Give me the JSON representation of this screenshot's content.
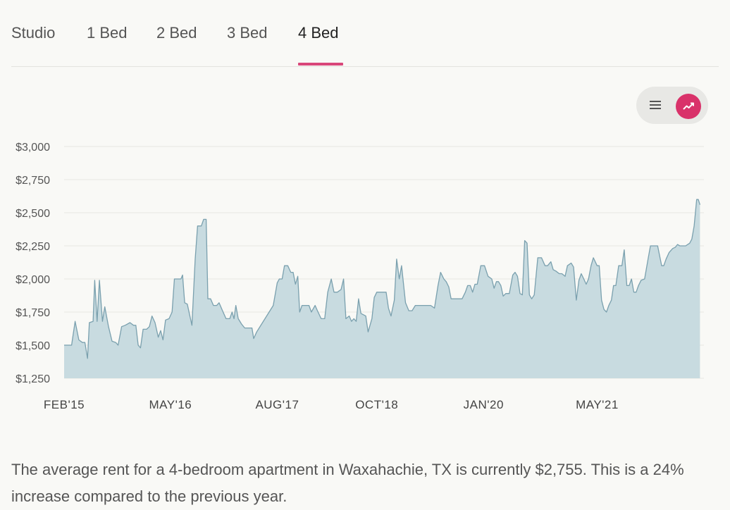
{
  "tabs": [
    {
      "label": "Studio"
    },
    {
      "label": "1 Bed"
    },
    {
      "label": "2 Bed"
    },
    {
      "label": "3 Bed"
    },
    {
      "label": "4 Bed"
    }
  ],
  "active_tab": "4 Bed",
  "view_toggle": {
    "options": [
      "list",
      "chart"
    ],
    "selected": "chart"
  },
  "colors": {
    "accent": "#d9326a",
    "area_fill": "#c8dbe0",
    "line": "#7aa0ae",
    "grid": "#e6e6e2"
  },
  "chart_data": {
    "type": "area",
    "title": "",
    "xlabel": "",
    "ylabel": "",
    "ylim": [
      1250,
      3000
    ],
    "yticks": [
      {
        "value": 1250,
        "label": "$1,250"
      },
      {
        "value": 1500,
        "label": "$1,500"
      },
      {
        "value": 1750,
        "label": "$1,750"
      },
      {
        "value": 2000,
        "label": "$2,000"
      },
      {
        "value": 2250,
        "label": "$2,250"
      },
      {
        "value": 2500,
        "label": "$2,500"
      },
      {
        "value": 2750,
        "label": "$2,750"
      },
      {
        "value": 3000,
        "label": "$3,000"
      }
    ],
    "xlim": [
      "2015-02",
      "2022-08"
    ],
    "xticks": [
      {
        "date": "2015-02",
        "label": "FEB'15"
      },
      {
        "date": "2016-05",
        "label": "MAY'16"
      },
      {
        "date": "2017-08",
        "label": "AUG'17"
      },
      {
        "date": "2018-10",
        "label": "OCT'18"
      },
      {
        "date": "2020-01",
        "label": "JAN'20"
      },
      {
        "date": "2021-05",
        "label": "MAY'21"
      }
    ],
    "grid": true,
    "series": [
      {
        "points": [
          [
            "2015-02-01",
            1500
          ],
          [
            "2015-03-05",
            1500
          ],
          [
            "2015-03-20",
            1680
          ],
          [
            "2015-04-05",
            1540
          ],
          [
            "2015-04-20",
            1520
          ],
          [
            "2015-05-01",
            1520
          ],
          [
            "2015-05-12",
            1400
          ],
          [
            "2015-05-20",
            1670
          ],
          [
            "2015-06-05",
            1680
          ],
          [
            "2015-06-12",
            1990
          ],
          [
            "2015-06-22",
            1680
          ],
          [
            "2015-07-02",
            1990
          ],
          [
            "2015-07-15",
            1680
          ],
          [
            "2015-07-25",
            1790
          ],
          [
            "2015-08-10",
            1640
          ],
          [
            "2015-08-25",
            1530
          ],
          [
            "2015-09-10",
            1520
          ],
          [
            "2015-09-20",
            1500
          ],
          [
            "2015-10-05",
            1640
          ],
          [
            "2015-10-20",
            1650
          ],
          [
            "2015-11-10",
            1670
          ],
          [
            "2015-11-25",
            1650
          ],
          [
            "2015-12-05",
            1650
          ],
          [
            "2015-12-15",
            1500
          ],
          [
            "2015-12-25",
            1480
          ],
          [
            "2016-01-05",
            1620
          ],
          [
            "2016-01-20",
            1620
          ],
          [
            "2016-02-01",
            1640
          ],
          [
            "2016-02-12",
            1720
          ],
          [
            "2016-02-25",
            1670
          ],
          [
            "2016-03-10",
            1560
          ],
          [
            "2016-03-20",
            1610
          ],
          [
            "2016-03-30",
            1540
          ],
          [
            "2016-04-10",
            1690
          ],
          [
            "2016-04-25",
            1700
          ],
          [
            "2016-05-08",
            1750
          ],
          [
            "2016-05-18",
            2000
          ],
          [
            "2016-06-01",
            2000
          ],
          [
            "2016-06-15",
            2000
          ],
          [
            "2016-06-22",
            2030
          ],
          [
            "2016-07-01",
            1820
          ],
          [
            "2016-07-12",
            1810
          ],
          [
            "2016-07-22",
            1730
          ],
          [
            "2016-08-01",
            1650
          ],
          [
            "2016-08-15",
            2150
          ],
          [
            "2016-08-25",
            2400
          ],
          [
            "2016-09-10",
            2400
          ],
          [
            "2016-09-20",
            2450
          ],
          [
            "2016-10-01",
            2450
          ],
          [
            "2016-10-08",
            1850
          ],
          [
            "2016-10-20",
            1850
          ],
          [
            "2016-11-01",
            1800
          ],
          [
            "2016-11-15",
            1800
          ],
          [
            "2016-11-25",
            1820
          ],
          [
            "2016-12-10",
            1760
          ],
          [
            "2016-12-25",
            1700
          ],
          [
            "2017-01-10",
            1700
          ],
          [
            "2017-01-20",
            1750
          ],
          [
            "2017-01-28",
            1700
          ],
          [
            "2017-02-05",
            1800
          ],
          [
            "2017-02-15",
            1700
          ],
          [
            "2017-03-01",
            1660
          ],
          [
            "2017-03-15",
            1630
          ],
          [
            "2017-04-01",
            1630
          ],
          [
            "2017-04-15",
            1630
          ],
          [
            "2017-04-22",
            1550
          ],
          [
            "2017-05-05",
            1600
          ],
          [
            "2017-07-15",
            1800
          ],
          [
            "2017-08-01",
            1970
          ],
          [
            "2017-08-10",
            2000
          ],
          [
            "2017-08-22",
            2000
          ],
          [
            "2017-09-01",
            2100
          ],
          [
            "2017-09-15",
            2100
          ],
          [
            "2017-09-28",
            2050
          ],
          [
            "2017-10-08",
            2050
          ],
          [
            "2017-10-18",
            1960
          ],
          [
            "2017-10-28",
            2020
          ],
          [
            "2017-11-05",
            1750
          ],
          [
            "2017-11-15",
            1800
          ],
          [
            "2017-12-01",
            1800
          ],
          [
            "2017-12-15",
            1800
          ],
          [
            "2017-12-25",
            1750
          ],
          [
            "2018-01-10",
            1800
          ],
          [
            "2018-01-20",
            1760
          ],
          [
            "2018-02-05",
            1700
          ],
          [
            "2018-02-20",
            1700
          ],
          [
            "2018-03-05",
            1900
          ],
          [
            "2018-03-20",
            2000
          ],
          [
            "2018-04-01",
            1900
          ],
          [
            "2018-04-15",
            1900
          ],
          [
            "2018-05-01",
            1920
          ],
          [
            "2018-05-12",
            2000
          ],
          [
            "2018-05-22",
            1700
          ],
          [
            "2018-06-05",
            1720
          ],
          [
            "2018-06-15",
            1680
          ],
          [
            "2018-06-25",
            1700
          ],
          [
            "2018-07-05",
            1680
          ],
          [
            "2018-07-15",
            1850
          ],
          [
            "2018-07-25",
            1740
          ],
          [
            "2018-08-15",
            1720
          ],
          [
            "2018-08-25",
            1600
          ],
          [
            "2018-09-10",
            1700
          ],
          [
            "2018-09-20",
            1860
          ],
          [
            "2018-10-01",
            1900
          ],
          [
            "2018-10-20",
            1900
          ],
          [
            "2018-11-10",
            1900
          ],
          [
            "2018-11-20",
            1780
          ],
          [
            "2018-12-01",
            1720
          ],
          [
            "2018-12-15",
            1840
          ],
          [
            "2018-12-25",
            2150
          ],
          [
            "2019-01-05",
            2000
          ],
          [
            "2019-01-15",
            2100
          ],
          [
            "2019-02-01",
            1820
          ],
          [
            "2019-02-15",
            1760
          ],
          [
            "2019-03-01",
            1760
          ],
          [
            "2019-03-15",
            1800
          ],
          [
            "2019-04-01",
            1800
          ],
          [
            "2019-05-01",
            1800
          ],
          [
            "2019-05-20",
            1800
          ],
          [
            "2019-06-05",
            1780
          ],
          [
            "2019-06-20",
            1950
          ],
          [
            "2019-07-01",
            2050
          ],
          [
            "2019-07-15",
            2000
          ],
          [
            "2019-07-25",
            1980
          ],
          [
            "2019-08-05",
            1940
          ],
          [
            "2019-08-15",
            1850
          ],
          [
            "2019-09-01",
            1850
          ],
          [
            "2019-09-20",
            1850
          ],
          [
            "2019-10-01",
            1850
          ],
          [
            "2019-10-15",
            1900
          ],
          [
            "2019-10-25",
            1950
          ],
          [
            "2019-11-05",
            1950
          ],
          [
            "2019-11-15",
            1900
          ],
          [
            "2019-11-25",
            1960
          ],
          [
            "2019-12-05",
            1960
          ],
          [
            "2019-12-20",
            2100
          ],
          [
            "2020-01-05",
            2100
          ],
          [
            "2020-01-20",
            2020
          ],
          [
            "2020-02-05",
            2000
          ],
          [
            "2020-02-15",
            1930
          ],
          [
            "2020-02-25",
            1980
          ],
          [
            "2020-03-05",
            1980
          ],
          [
            "2020-03-15",
            1950
          ],
          [
            "2020-03-25",
            1870
          ],
          [
            "2020-04-05",
            1890
          ],
          [
            "2020-04-20",
            1890
          ],
          [
            "2020-05-05",
            2030
          ],
          [
            "2020-05-15",
            2050
          ],
          [
            "2020-05-25",
            2020
          ],
          [
            "2020-06-05",
            1890
          ],
          [
            "2020-06-15",
            1880
          ],
          [
            "2020-06-25",
            2290
          ],
          [
            "2020-07-05",
            2270
          ],
          [
            "2020-07-15",
            1880
          ],
          [
            "2020-07-25",
            1850
          ],
          [
            "2020-08-05",
            1880
          ],
          [
            "2020-08-20",
            2160
          ],
          [
            "2020-09-05",
            2160
          ],
          [
            "2020-09-20",
            2100
          ],
          [
            "2020-10-01",
            2100
          ],
          [
            "2020-10-15",
            2130
          ],
          [
            "2020-10-25",
            2070
          ],
          [
            "2020-11-05",
            2060
          ],
          [
            "2020-11-20",
            2040
          ],
          [
            "2020-12-01",
            2040
          ],
          [
            "2020-12-15",
            2020
          ],
          [
            "2020-12-25",
            2100
          ],
          [
            "2021-01-10",
            2120
          ],
          [
            "2021-01-20",
            2090
          ],
          [
            "2021-02-01",
            1840
          ],
          [
            "2021-02-12",
            1990
          ],
          [
            "2021-02-22",
            2040
          ],
          [
            "2021-03-05",
            2000
          ],
          [
            "2021-03-15",
            1960
          ],
          [
            "2021-03-25",
            2000
          ],
          [
            "2021-04-05",
            2100
          ],
          [
            "2021-04-15",
            2160
          ],
          [
            "2021-05-01",
            2100
          ],
          [
            "2021-05-10",
            2100
          ],
          [
            "2021-05-20",
            1840
          ],
          [
            "2021-05-30",
            1770
          ],
          [
            "2021-06-10",
            1750
          ],
          [
            "2021-06-20",
            1800
          ],
          [
            "2021-07-01",
            1840
          ],
          [
            "2021-07-10",
            1950
          ],
          [
            "2021-07-20",
            1950
          ],
          [
            "2021-08-01",
            2100
          ],
          [
            "2021-08-15",
            2100
          ],
          [
            "2021-08-25",
            2220
          ],
          [
            "2021-09-05",
            1950
          ],
          [
            "2021-09-15",
            1950
          ],
          [
            "2021-09-25",
            2000
          ],
          [
            "2021-10-05",
            1900
          ],
          [
            "2021-10-15",
            1900
          ],
          [
            "2021-10-25",
            1950
          ],
          [
            "2021-11-05",
            1990
          ],
          [
            "2021-11-20",
            2000
          ],
          [
            "2021-12-05",
            2150
          ],
          [
            "2021-12-15",
            2250
          ],
          [
            "2022-01-01",
            2250
          ],
          [
            "2022-01-15",
            2250
          ],
          [
            "2022-02-01",
            2100
          ],
          [
            "2022-02-10",
            2100
          ],
          [
            "2022-02-20",
            2150
          ],
          [
            "2022-03-05",
            2200
          ],
          [
            "2022-03-20",
            2230
          ],
          [
            "2022-04-01",
            2240
          ],
          [
            "2022-04-10",
            2260
          ],
          [
            "2022-04-20",
            2250
          ],
          [
            "2022-05-01",
            2250
          ],
          [
            "2022-05-15",
            2250
          ],
          [
            "2022-06-01",
            2270
          ],
          [
            "2022-06-10",
            2300
          ],
          [
            "2022-06-20",
            2400
          ],
          [
            "2022-07-01",
            2600
          ],
          [
            "2022-07-08",
            2600
          ],
          [
            "2022-07-15",
            2560
          ]
        ]
      }
    ]
  },
  "summary": "The average rent for a 4-bedroom apartment in Waxahachie, TX is currently $2,755. This is a 24% increase compared to the previous year."
}
